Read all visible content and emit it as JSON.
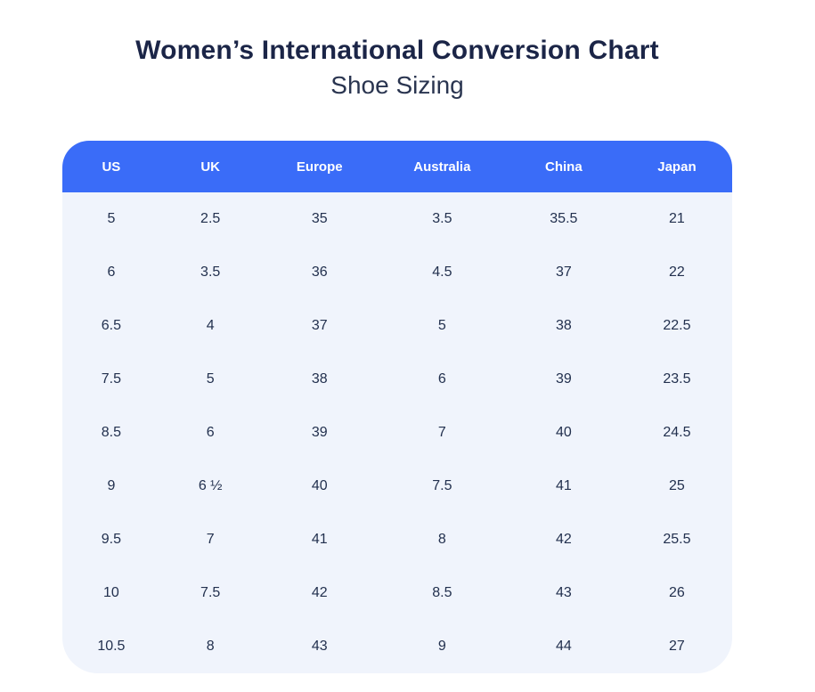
{
  "page": {
    "title": "Women’s International Conversion Chart",
    "subtitle": "Shoe Sizing"
  },
  "colors": {
    "header_bg": "#3a6cf8",
    "header_text": "#ffffff",
    "body_bg": "#f0f4fc",
    "title_text": "#1b2547",
    "cell_text": "#22304e",
    "page_bg": "#ffffff"
  },
  "chart_data": {
    "type": "table",
    "title": "Women’s International Conversion Chart",
    "subtitle": "Shoe Sizing",
    "columns": [
      "US",
      "UK",
      "Europe",
      "Australia",
      "China",
      "Japan"
    ],
    "rows": [
      [
        "5",
        "2.5",
        "35",
        "3.5",
        "35.5",
        "21"
      ],
      [
        "6",
        "3.5",
        "36",
        "4.5",
        "37",
        "22"
      ],
      [
        "6.5",
        "4",
        "37",
        "5",
        "38",
        "22.5"
      ],
      [
        "7.5",
        "5",
        "38",
        "6",
        "39",
        "23.5"
      ],
      [
        "8.5",
        "6",
        "39",
        "7",
        "40",
        "24.5"
      ],
      [
        "9",
        "6 ½",
        "40",
        "7.5",
        "41",
        "25"
      ],
      [
        "9.5",
        "7",
        "41",
        "8",
        "42",
        "25.5"
      ],
      [
        "10",
        "7.5",
        "42",
        "8.5",
        "43",
        "26"
      ],
      [
        "10.5",
        "8",
        "43",
        "9",
        "44",
        "27"
      ]
    ]
  }
}
